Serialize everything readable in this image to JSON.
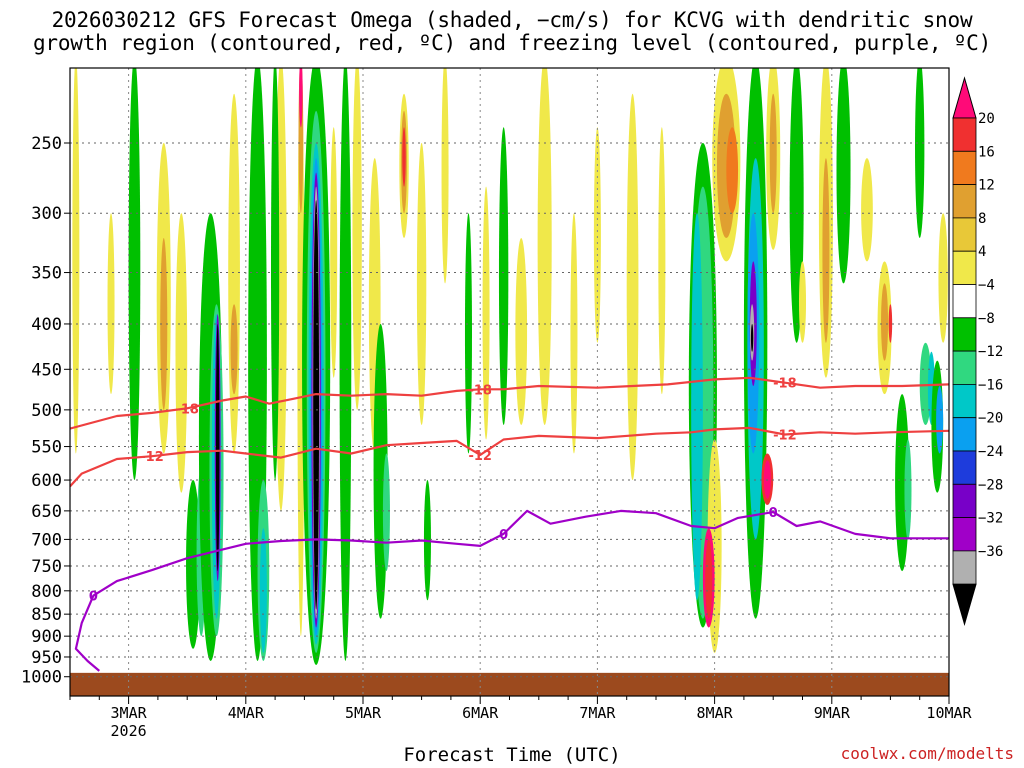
{
  "chart_data": {
    "type": "heatmap",
    "title": [
      "2026030212 GFS Forecast Omega (shaded, −cm/s) for KCVG with dendritic snow",
      "growth region (contoured, red, ºC) and freezing level (contoured, purple, ºC)"
    ],
    "xlabel": "Forecast Time (UTC)",
    "credit": "coolwx.com/modelts",
    "x_ticks": [
      "3MAR",
      "4MAR",
      "5MAR",
      "6MAR",
      "7MAR",
      "8MAR",
      "9MAR",
      "10MAR"
    ],
    "x_year": "2026",
    "x_range_days": [
      2.5,
      10.0
    ],
    "y_ticks": [
      250,
      300,
      350,
      400,
      450,
      500,
      550,
      600,
      650,
      700,
      750,
      800,
      850,
      900,
      950,
      1000
    ],
    "y_range_hpa": [
      200,
      1020
    ],
    "colorbar": {
      "labels": [
        "20",
        "16",
        "12",
        "8",
        "4",
        "−4",
        "−8",
        "−12",
        "−16",
        "−20",
        "−24",
        "−28",
        "−32",
        "−36"
      ],
      "colors": [
        "#ff0a78",
        "#f03030",
        "#f07a1e",
        "#e0a030",
        "#e8c838",
        "#f0e84a",
        "#ffffff",
        "#00c000",
        "#30d880",
        "#00c8c8",
        "#0aa0f0",
        "#1e3cdc",
        "#7800c8",
        "#a000c8",
        "#b0b0b0",
        "#000000"
      ]
    },
    "contours": [
      {
        "label": "-18",
        "color": "#ee4040",
        "points": [
          [
            2.5,
            525
          ],
          [
            2.9,
            508
          ],
          [
            3.2,
            504
          ],
          [
            3.5,
            498
          ],
          [
            3.8,
            488
          ],
          [
            4.0,
            483
          ],
          [
            4.2,
            492
          ],
          [
            4.4,
            486
          ],
          [
            4.6,
            480
          ],
          [
            4.9,
            482
          ],
          [
            5.2,
            480
          ],
          [
            5.5,
            482
          ],
          [
            5.8,
            476
          ],
          [
            6.0,
            474
          ],
          [
            6.2,
            474
          ],
          [
            6.5,
            470
          ],
          [
            7.0,
            472
          ],
          [
            7.3,
            470
          ],
          [
            7.6,
            468
          ],
          [
            8.0,
            462
          ],
          [
            8.3,
            460
          ],
          [
            8.6,
            466
          ],
          [
            8.9,
            472
          ],
          [
            9.2,
            470
          ],
          [
            9.6,
            470
          ],
          [
            10.0,
            468
          ]
        ]
      },
      {
        "label": "-12",
        "color": "#ee4040",
        "points": [
          [
            2.5,
            610
          ],
          [
            2.6,
            590
          ],
          [
            2.9,
            568
          ],
          [
            3.2,
            564
          ],
          [
            3.5,
            558
          ],
          [
            3.8,
            556
          ],
          [
            4.0,
            560
          ],
          [
            4.3,
            566
          ],
          [
            4.6,
            553
          ],
          [
            4.9,
            560
          ],
          [
            5.2,
            548
          ],
          [
            5.5,
            545
          ],
          [
            5.8,
            542
          ],
          [
            6.0,
            562
          ],
          [
            6.2,
            540
          ],
          [
            6.5,
            535
          ],
          [
            7.0,
            538
          ],
          [
            7.5,
            532
          ],
          [
            7.8,
            530
          ],
          [
            8.0,
            526
          ],
          [
            8.3,
            524
          ],
          [
            8.6,
            533
          ],
          [
            8.9,
            530
          ],
          [
            9.2,
            532
          ],
          [
            9.5,
            530
          ],
          [
            10.0,
            528
          ]
        ]
      },
      {
        "label": "0",
        "color": "#a000c8",
        "points": [
          [
            2.75,
            985
          ],
          [
            2.65,
            960
          ],
          [
            2.55,
            930
          ],
          [
            2.6,
            870
          ],
          [
            2.7,
            810
          ],
          [
            2.9,
            780
          ],
          [
            3.2,
            758
          ],
          [
            3.5,
            735
          ],
          [
            3.7,
            724
          ],
          [
            4.0,
            708
          ],
          [
            4.3,
            703
          ],
          [
            4.6,
            700
          ],
          [
            4.9,
            702
          ],
          [
            5.2,
            706
          ],
          [
            5.5,
            702
          ],
          [
            5.8,
            708
          ],
          [
            6.0,
            712
          ],
          [
            6.2,
            690
          ],
          [
            6.4,
            650
          ],
          [
            6.6,
            672
          ],
          [
            6.9,
            660
          ],
          [
            7.2,
            650
          ],
          [
            7.5,
            654
          ],
          [
            7.8,
            676
          ],
          [
            8.0,
            680
          ],
          [
            8.2,
            662
          ],
          [
            8.5,
            652
          ],
          [
            8.7,
            676
          ],
          [
            8.9,
            668
          ],
          [
            9.2,
            690
          ],
          [
            9.5,
            698
          ],
          [
            10.0,
            698
          ]
        ]
      }
    ]
  }
}
